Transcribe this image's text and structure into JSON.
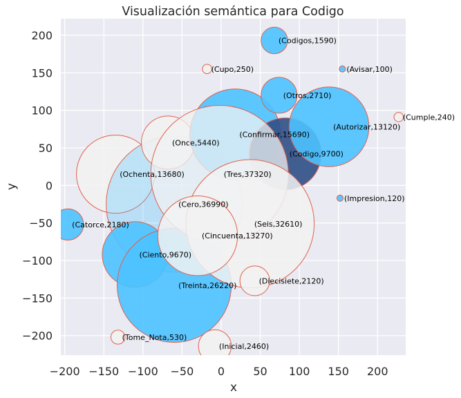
{
  "chart_data": {
    "type": "scatter",
    "title": "Visualización semántica para Codigo",
    "xlabel": "x",
    "ylabel": "y",
    "xlim": [
      -205,
      236
    ],
    "ylim": [
      -226,
      222
    ],
    "xticks": [
      -200,
      -150,
      -100,
      -50,
      0,
      50,
      100,
      150,
      200
    ],
    "yticks": [
      -200,
      -150,
      -100,
      -50,
      0,
      50,
      100,
      150,
      200
    ],
    "xtick_labels": [
      "−200",
      "−150",
      "−100",
      "−50",
      "0",
      "50",
      "100",
      "150",
      "200"
    ],
    "ytick_labels": [
      "−200",
      "−150",
      "−100",
      "−50",
      "0",
      "50",
      "100",
      "150",
      "200"
    ],
    "grid": true,
    "colors": {
      "background": "#eaeaf2",
      "grid": "#ffffff",
      "blue": "#4cc2ff",
      "white": "#f2f2f2",
      "dark": "#2f4f86",
      "outline": "#e1604b"
    },
    "points": [
      {
        "label": "(Ochenta,13680)",
        "x": -135,
        "y": 15,
        "r": 50,
        "fill": "white",
        "opacity": 0.85
      },
      {
        "label": "(Cero,36990)",
        "x": -60,
        "y": -25,
        "r": 87,
        "fill": "blue",
        "opacity": 0.3
      },
      {
        "label": "(Once,5440)",
        "x": -68,
        "y": 57,
        "r": 34,
        "fill": "white",
        "opacity": 0.9
      },
      {
        "label": "(Confirmar,15690)",
        "x": 18,
        "y": 68,
        "r": 58,
        "fill": "blue",
        "opacity": 0.9
      },
      {
        "label": "(Codigo,9700)",
        "x": 82,
        "y": 42,
        "r": 46,
        "fill": "dark",
        "opacity": 0.9
      },
      {
        "label": "(Autorizar,13120)",
        "x": 138,
        "y": 78,
        "r": 51,
        "fill": "blue",
        "opacity": 0.9
      },
      {
        "label": "(Otros,2710)",
        "x": 74,
        "y": 120,
        "r": 23,
        "fill": "blue",
        "opacity": 0.9
      },
      {
        "label": "(Codigos,1590)",
        "x": 68,
        "y": 193,
        "r": 17,
        "fill": "blue",
        "opacity": 0.9
      },
      {
        "label": "(Cupo,250)",
        "x": -18,
        "y": 155,
        "r": 6,
        "fill": "white",
        "opacity": 0.9
      },
      {
        "label": "(Avisar,100)",
        "x": 155,
        "y": 155,
        "r": 4,
        "fill": "blue",
        "opacity": 0.9
      },
      {
        "label": "(Cumple,240)",
        "x": 227,
        "y": 91,
        "r": 6,
        "fill": "white",
        "opacity": 0.9
      },
      {
        "label": "(Impresion,120)",
        "x": 152,
        "y": -17,
        "r": 4,
        "fill": "blue",
        "opacity": 0.9
      },
      {
        "label": "(Catorce,2180)",
        "x": -196,
        "y": -52,
        "r": 20,
        "fill": "blue",
        "opacity": 0.9
      },
      {
        "label": "(Ciento,9670)",
        "x": -110,
        "y": -92,
        "r": 42,
        "fill": "blue",
        "opacity": 0.9
      },
      {
        "label": "(Treinta,26220)",
        "x": -60,
        "y": -133,
        "r": 73,
        "fill": "blue",
        "opacity": 0.9
      },
      {
        "label": "(Tres,37320)",
        "x": -2,
        "y": 15,
        "r": 88,
        "fill": "white",
        "opacity": 0.75
      },
      {
        "label": "(Seis,32610)",
        "x": 37,
        "y": -51,
        "r": 82,
        "fill": "white",
        "opacity": 0.85
      },
      {
        "label": "(Cincuenta,13270)",
        "x": -30,
        "y": -67,
        "r": 51,
        "fill": "white",
        "opacity": 0.85
      },
      {
        "label": "(Diecisiete,2120)",
        "x": 43,
        "y": -127,
        "r": 19,
        "fill": "white",
        "opacity": 0.9
      },
      {
        "label": "(Tome_Nota,530)",
        "x": -132,
        "y": -202,
        "r": 9,
        "fill": "white",
        "opacity": 0.9
      },
      {
        "label": "(Inicial,2460)",
        "x": -8,
        "y": -214,
        "r": 21,
        "fill": "white",
        "opacity": 0.9
      }
    ]
  }
}
